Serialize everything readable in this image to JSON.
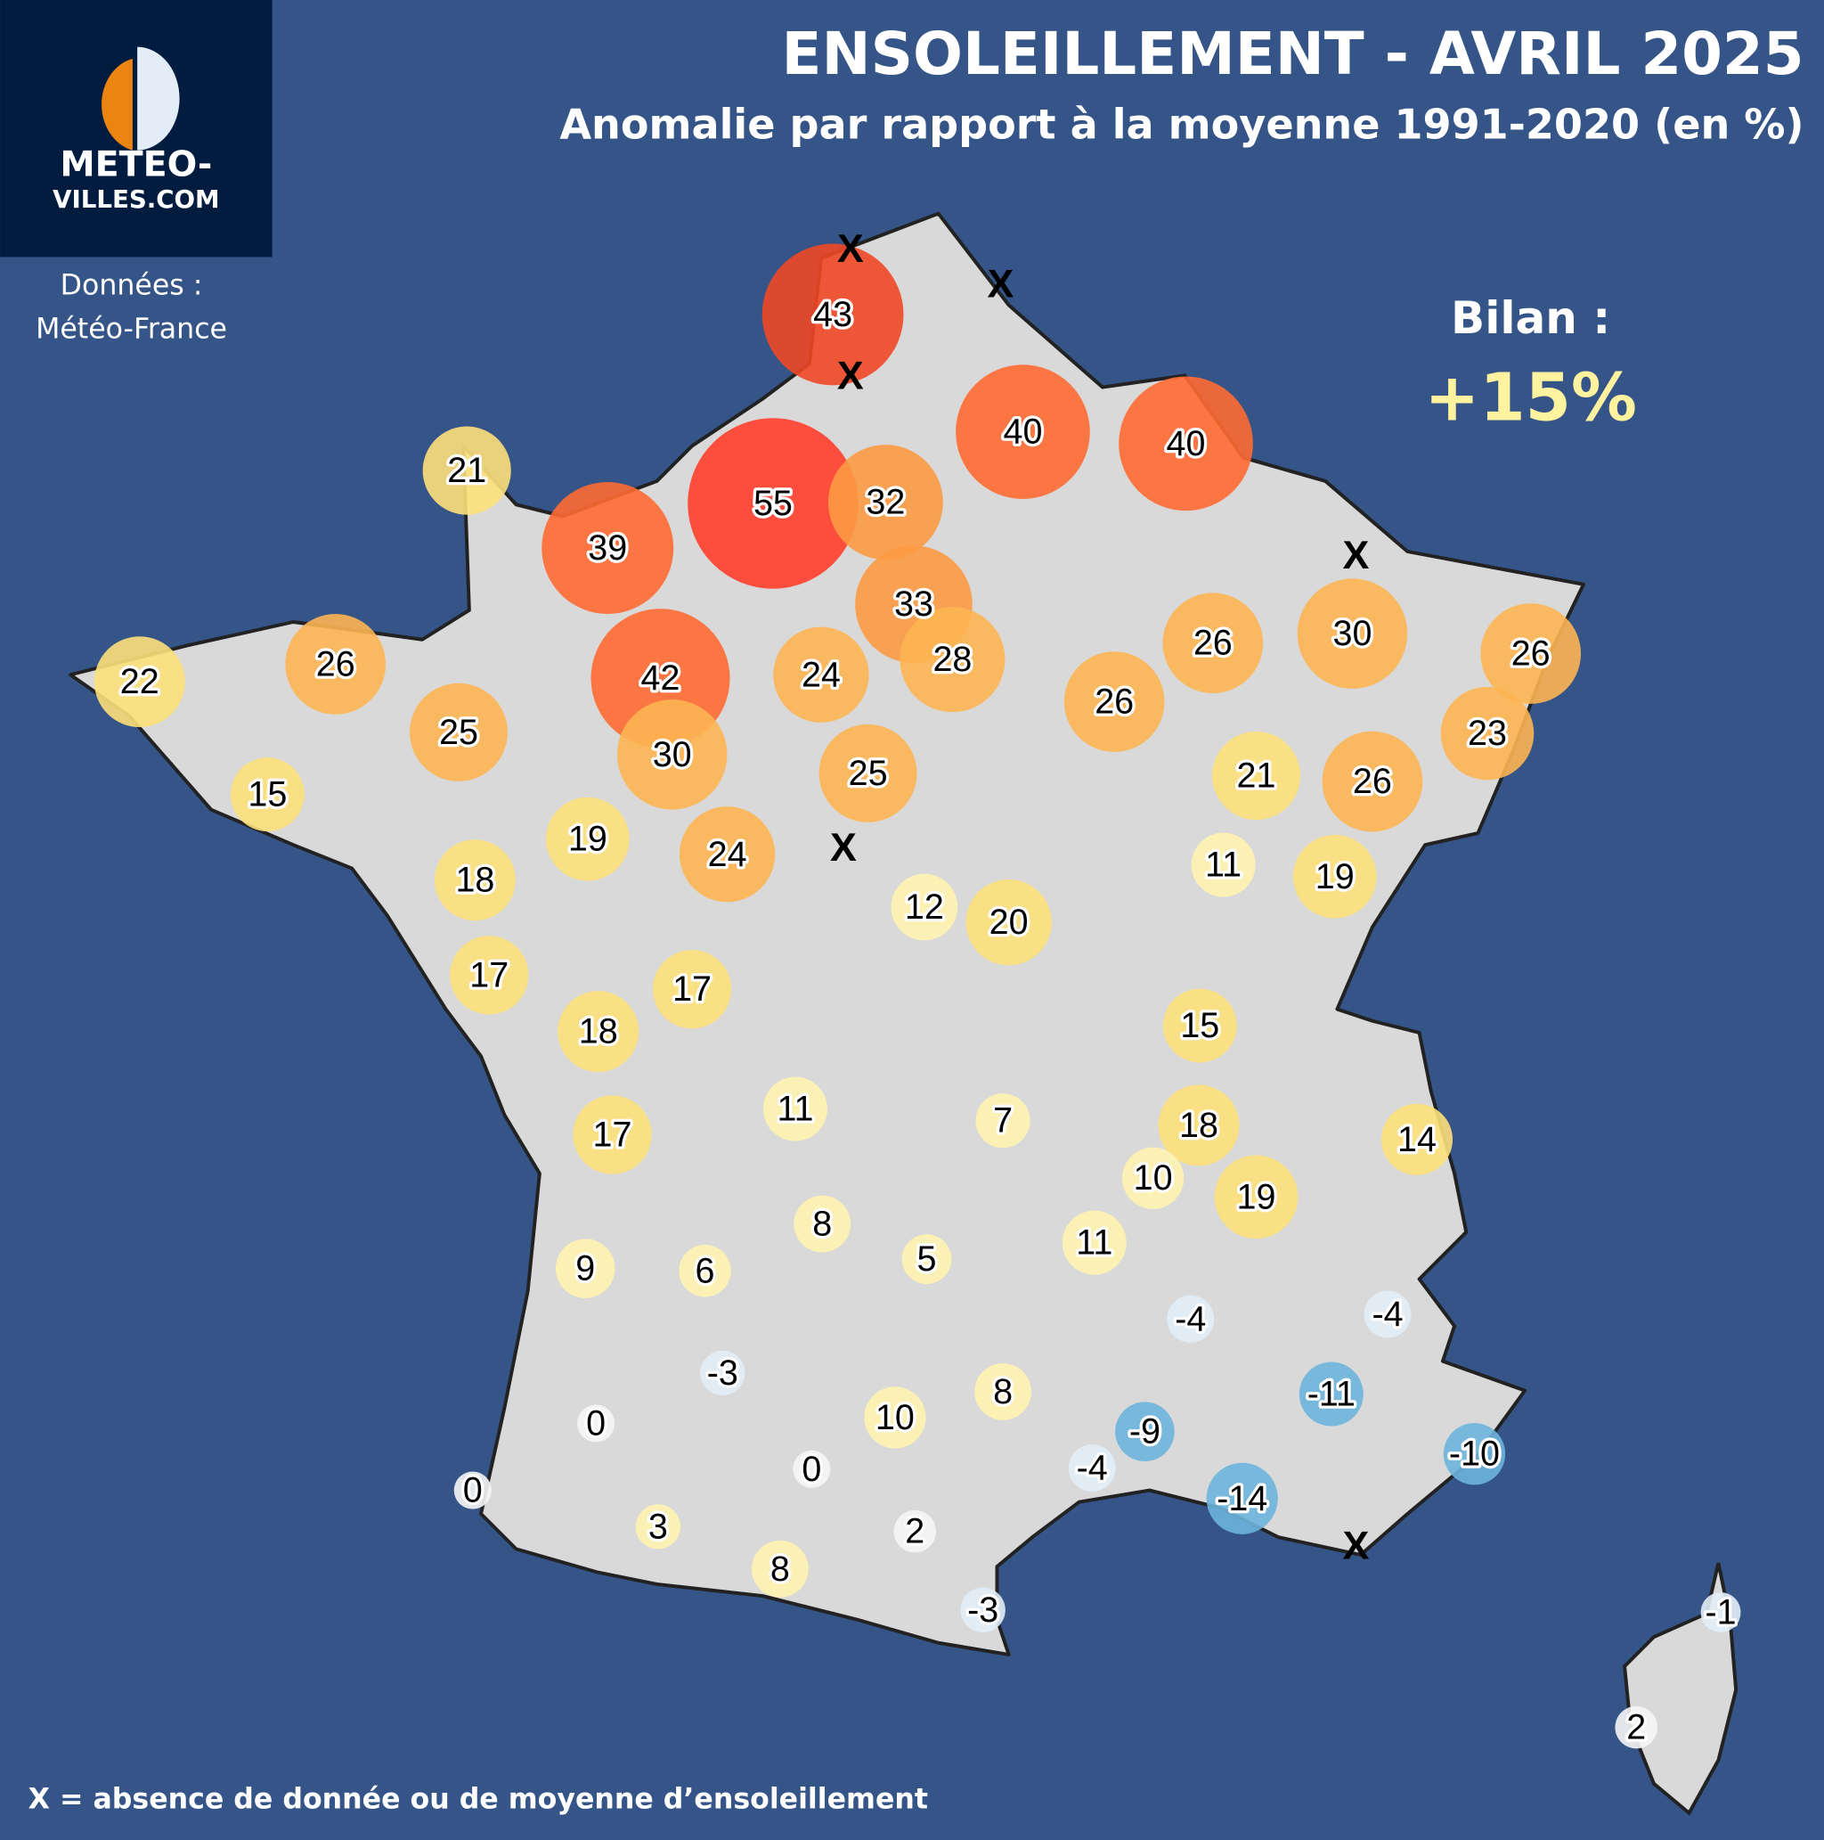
{
  "header": {
    "title": "ENSOLEILLEMENT - AVRIL 2025",
    "subtitle": "Anomalie par rapport à la moyenne 1991-2020 (en %)"
  },
  "logo": {
    "line1": "METEO-",
    "line2": "VILLES.COM",
    "colors": {
      "bg": "#011c3f",
      "orange": "#ec8411",
      "light": "#e2edf7"
    }
  },
  "source": {
    "line1": "Données :",
    "line2": "Météo-France"
  },
  "summary": {
    "label": "Bilan :",
    "value": "+15%",
    "color": "#fff3a0"
  },
  "footnote": "X = absence de donnée ou de moyenne d’ensoleillement",
  "missing_marker": "X",
  "colors": {
    "sea": "#355487",
    "land": "#d9d9d9",
    "border": "#222222"
  },
  "stations": [
    43,
    55,
    40,
    40,
    21,
    39,
    32,
    33,
    28,
    22,
    26,
    42,
    24,
    26,
    26,
    30,
    26,
    25,
    30,
    25,
    23,
    21,
    26,
    15,
    19,
    24,
    18,
    11,
    19,
    12,
    20,
    17,
    17,
    18,
    15,
    11,
    7,
    18,
    14,
    17,
    10,
    19,
    8,
    11,
    5,
    9,
    6,
    -4,
    -4,
    -3,
    -11,
    8,
    10,
    0,
    -9,
    -10,
    -4,
    0,
    -14,
    0,
    3,
    2,
    8,
    -3,
    -1,
    2
  ]
}
